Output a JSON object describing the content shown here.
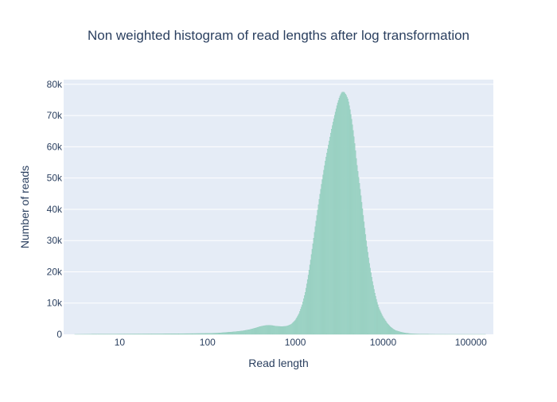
{
  "colors": {
    "plot_bg": "#e5ecf6",
    "grid": "#ffffff",
    "bar_fill": "#a3d9cb",
    "bar_stroke": "#8cc6b6",
    "text": "#2a3f5f"
  },
  "chart_data": {
    "type": "bar",
    "title": "Non weighted histogram of read lengths after log transformation",
    "xlabel": "Read length",
    "ylabel": "Number of reads",
    "x_scale": "log",
    "xlim": [
      2.3,
      180000
    ],
    "ylim": [
      0,
      81500
    ],
    "grid": true,
    "x_ticks": [
      {
        "value": 10,
        "label": "10"
      },
      {
        "value": 100,
        "label": "100"
      },
      {
        "value": 1000,
        "label": "1000"
      },
      {
        "value": 10000,
        "label": "10000"
      },
      {
        "value": 100000,
        "label": "100000"
      }
    ],
    "y_ticks": [
      {
        "value": 0,
        "label": "0"
      },
      {
        "value": 10000,
        "label": "10k"
      },
      {
        "value": 20000,
        "label": "20k"
      },
      {
        "value": 30000,
        "label": "30k"
      },
      {
        "value": 40000,
        "label": "40k"
      },
      {
        "value": 50000,
        "label": "50k"
      },
      {
        "value": 60000,
        "label": "60k"
      },
      {
        "value": 70000,
        "label": "70k"
      },
      {
        "value": 80000,
        "label": "80k"
      }
    ],
    "series": [
      {
        "x": [
          3,
          10,
          30,
          100,
          130,
          160,
          200,
          250,
          300,
          350,
          400,
          450,
          500,
          550,
          600,
          700,
          800,
          900,
          1000,
          1100,
          1200,
          1300,
          1400,
          1500,
          1600,
          1700,
          1800,
          1900,
          2000,
          2200,
          2400,
          2600,
          2800,
          3000,
          3200,
          3400,
          3600,
          3800,
          4000,
          4200,
          4400,
          4600,
          4800,
          5000,
          5500,
          6000,
          6500,
          7000,
          7500,
          8000,
          8500,
          9000,
          10000,
          11000,
          12000,
          13000,
          14000,
          16000,
          18000,
          20000,
          22000,
          25000,
          30000,
          40000,
          60000,
          100000,
          170000
        ],
        "y": [
          0,
          100,
          150,
          300,
          400,
          600,
          800,
          1100,
          1500,
          2000,
          2500,
          2800,
          2900,
          2800,
          2600,
          2500,
          2600,
          3200,
          4500,
          6500,
          9500,
          13500,
          18500,
          24000,
          29500,
          35000,
          40000,
          44500,
          48500,
          55500,
          61000,
          66000,
          70000,
          73500,
          76000,
          77500,
          77500,
          76500,
          75000,
          72000,
          68500,
          64500,
          60000,
          55000,
          46000,
          37000,
          29000,
          22500,
          17500,
          13500,
          10500,
          8200,
          5500,
          3700,
          2500,
          1700,
          1200,
          700,
          400,
          250,
          150,
          100,
          50,
          20,
          10,
          5,
          0
        ]
      }
    ]
  }
}
